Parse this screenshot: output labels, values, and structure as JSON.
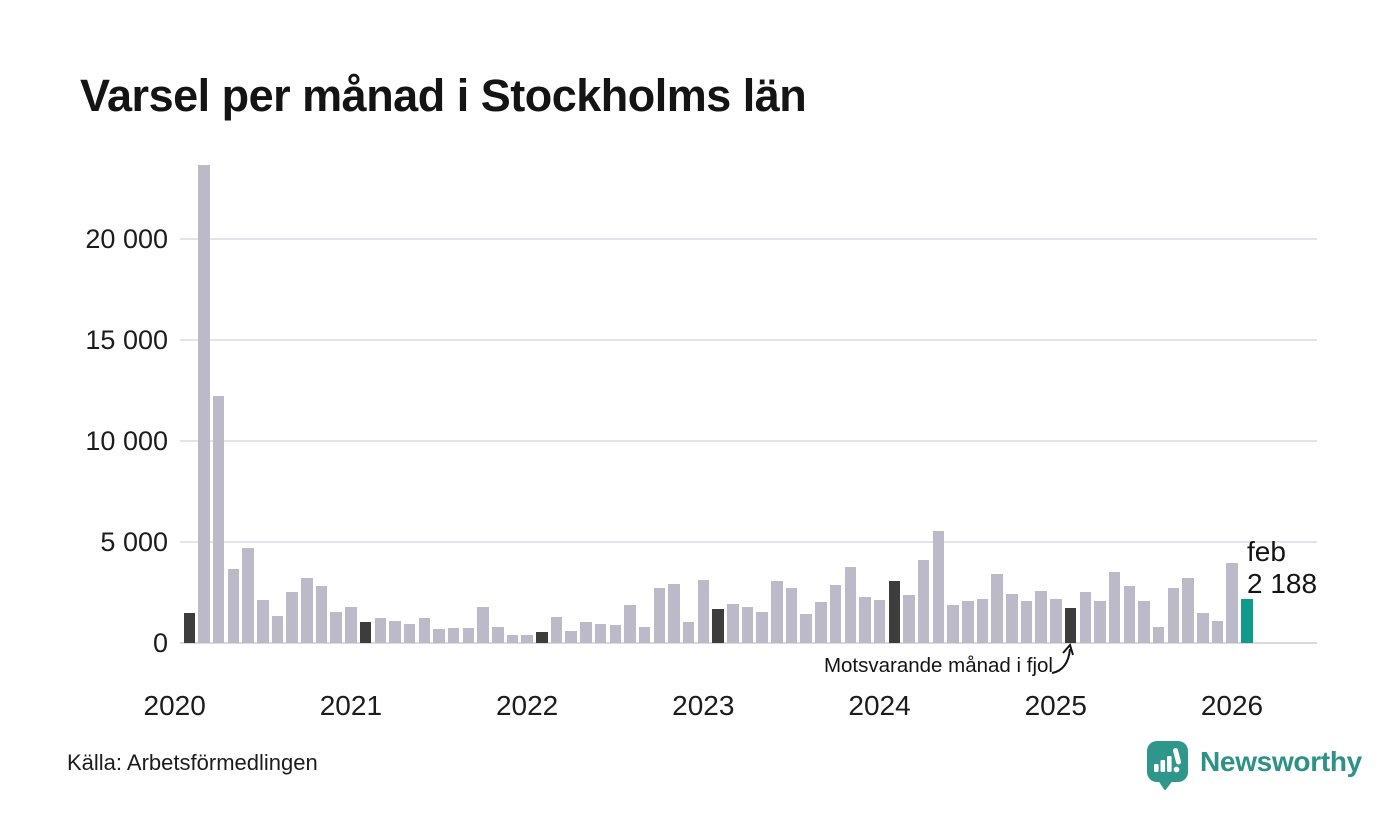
{
  "title": "Varsel per månad i Stockholms län",
  "source": "Källa: Arbetsförmedlingen",
  "current_label": {
    "line1": "feb",
    "line2": "2 188"
  },
  "annotation": {
    "text": "Motsvarande månad i fjol",
    "target_month": "2025-02"
  },
  "brand": {
    "name": "Newsworthy"
  },
  "colors": {
    "bar": "#bcb9c9",
    "highlight": "#3d3d3d",
    "current": "#0f9a8c",
    "grid": "#e3e3e8",
    "baseline": "#d9d9de",
    "text": "#141414",
    "brand_teal": "#2e968b",
    "brand_text": "#2d9186"
  },
  "chart_data": {
    "type": "bar",
    "title": "Varsel per månad i Stockholms län",
    "xlabel": "",
    "ylabel": "",
    "grid": true,
    "ylim": [
      0,
      23900
    ],
    "y_ticks": [
      0,
      5000,
      10000,
      15000,
      20000
    ],
    "y_tick_labels": [
      "0",
      "5 000",
      "10 000",
      "15 000",
      "20 000"
    ],
    "months": [
      "2020-02",
      "2020-03",
      "2020-04",
      "2020-05",
      "2020-06",
      "2020-07",
      "2020-08",
      "2020-09",
      "2020-10",
      "2020-11",
      "2020-12",
      "2021-01",
      "2021-02",
      "2021-03",
      "2021-04",
      "2021-05",
      "2021-06",
      "2021-07",
      "2021-08",
      "2021-09",
      "2021-10",
      "2021-11",
      "2021-12",
      "2022-01",
      "2022-02",
      "2022-03",
      "2022-04",
      "2022-05",
      "2022-06",
      "2022-07",
      "2022-08",
      "2022-09",
      "2022-10",
      "2022-11",
      "2022-12",
      "2023-01",
      "2023-02",
      "2023-03",
      "2023-04",
      "2023-05",
      "2023-06",
      "2023-07",
      "2023-08",
      "2023-09",
      "2023-10",
      "2023-11",
      "2023-12",
      "2024-01",
      "2024-02",
      "2024-03",
      "2024-04",
      "2024-05",
      "2024-06",
      "2024-07",
      "2024-08",
      "2024-09",
      "2024-10",
      "2024-11",
      "2024-12",
      "2025-01",
      "2025-02",
      "2025-03",
      "2025-04",
      "2025-05",
      "2025-06",
      "2025-07",
      "2025-08",
      "2025-09",
      "2025-10",
      "2025-11",
      "2025-12",
      "2026-01",
      "2026-02"
    ],
    "values": [
      1500,
      23650,
      12250,
      3680,
      4700,
      2130,
      1350,
      2510,
      3200,
      2840,
      1550,
      1800,
      1060,
      1220,
      1100,
      960,
      1220,
      680,
      730,
      760,
      1800,
      790,
      400,
      400,
      560,
      1300,
      590,
      1050,
      940,
      890,
      1880,
      810,
      2710,
      2920,
      1020,
      3120,
      1670,
      1930,
      1800,
      1550,
      3070,
      2710,
      1420,
      2040,
      2870,
      3780,
      2280,
      2130,
      3070,
      2380,
      4110,
      5540,
      1880,
      2080,
      2190,
      3400,
      2410,
      2080,
      2570,
      2180,
      1720,
      2540,
      2080,
      3530,
      2820,
      2080,
      810,
      2710,
      3200,
      1500,
      1090,
      3950,
      2188
    ],
    "highlight_indices": [
      0,
      12,
      24,
      36,
      48,
      60
    ],
    "current_index": 72,
    "year_labels": [
      {
        "label": "2020",
        "month_index": -1
      },
      {
        "label": "2021",
        "month_index": 11
      },
      {
        "label": "2022",
        "month_index": 23
      },
      {
        "label": "2023",
        "month_index": 35
      },
      {
        "label": "2024",
        "month_index": 47
      },
      {
        "label": "2025",
        "month_index": 59
      },
      {
        "label": "2026",
        "month_index": 71
      }
    ]
  }
}
